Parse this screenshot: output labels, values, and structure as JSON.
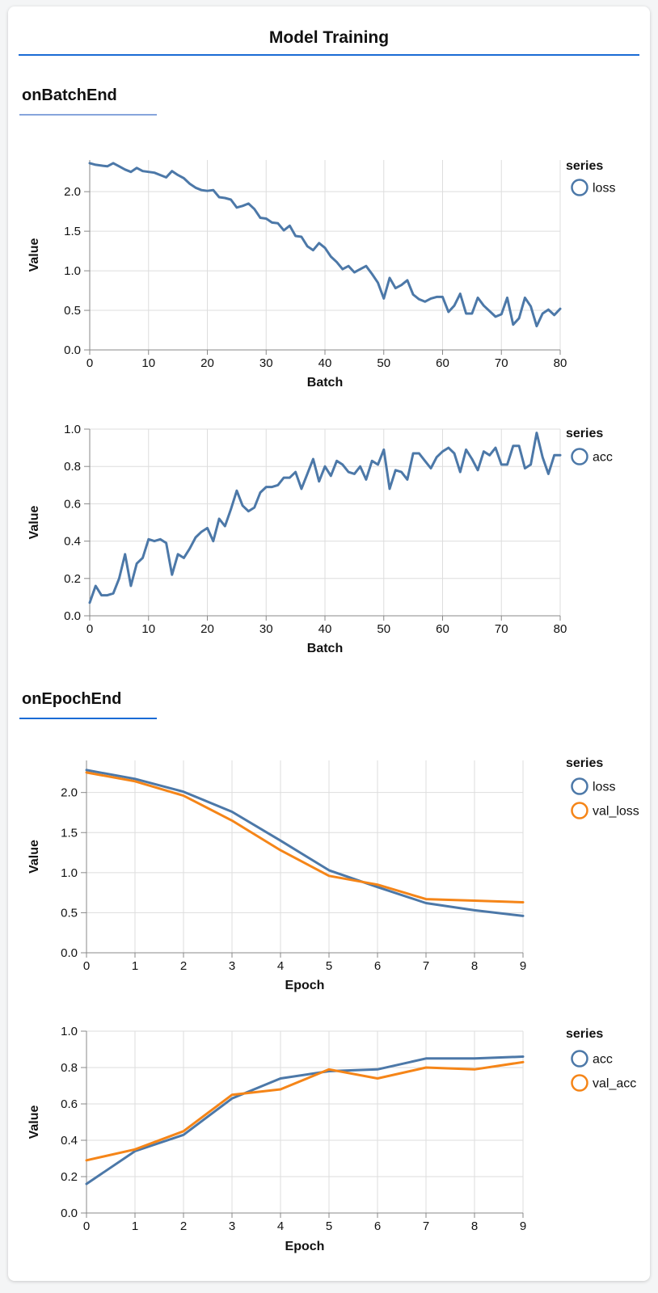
{
  "header": {
    "title": "Model Training",
    "underline_color": "#1a6bd5"
  },
  "sections": [
    {
      "heading": "onBatchEnd",
      "underline_color": "#87a5dc"
    },
    {
      "heading": "onEpochEnd",
      "underline_color": "#1a6bd5"
    }
  ],
  "colors": {
    "series_blue": "#4c78a8",
    "series_orange": "#f58518",
    "grid": "#dddddd",
    "axis": "#888888",
    "card_background": "#ffffff",
    "page_background": "#f4f5f6"
  },
  "chart_data": [
    {
      "id": "batch-loss",
      "type": "line",
      "section": "onBatchEnd",
      "xlabel": "Batch",
      "ylabel": "Value",
      "legend_title": "series",
      "legend_position": "top-right",
      "grid": true,
      "xlim": [
        0,
        80
      ],
      "xticks": [
        0,
        10,
        20,
        30,
        40,
        50,
        60,
        70,
        80
      ],
      "ylim": [
        0,
        2.4
      ],
      "yticks": [
        0.0,
        0.5,
        1.0,
        1.5,
        2.0
      ],
      "x_start": 0,
      "x_step": 1,
      "series": [
        {
          "name": "loss",
          "color": "#4c78a8",
          "values": [
            2.36,
            2.34,
            2.33,
            2.32,
            2.36,
            2.32,
            2.28,
            2.25,
            2.3,
            2.26,
            2.25,
            2.24,
            2.21,
            2.18,
            2.26,
            2.21,
            2.17,
            2.1,
            2.05,
            2.02,
            2.01,
            2.02,
            1.93,
            1.92,
            1.9,
            1.8,
            1.82,
            1.85,
            1.78,
            1.67,
            1.66,
            1.61,
            1.6,
            1.51,
            1.57,
            1.44,
            1.43,
            1.31,
            1.26,
            1.35,
            1.29,
            1.18,
            1.11,
            1.02,
            1.06,
            0.98,
            1.02,
            1.06,
            0.96,
            0.85,
            0.65,
            0.91,
            0.78,
            0.82,
            0.88,
            0.7,
            0.64,
            0.61,
            0.65,
            0.67,
            0.67,
            0.48,
            0.56,
            0.71,
            0.46,
            0.46,
            0.66,
            0.56,
            0.49,
            0.42,
            0.45,
            0.66,
            0.32,
            0.4,
            0.66,
            0.55,
            0.3,
            0.46,
            0.51,
            0.44,
            0.52
          ]
        }
      ]
    },
    {
      "id": "batch-acc",
      "type": "line",
      "section": "onBatchEnd",
      "xlabel": "Batch",
      "ylabel": "Value",
      "legend_title": "series",
      "legend_position": "top-right",
      "grid": true,
      "xlim": [
        0,
        80
      ],
      "xticks": [
        0,
        10,
        20,
        30,
        40,
        50,
        60,
        70,
        80
      ],
      "ylim": [
        0,
        1.0
      ],
      "yticks": [
        0.0,
        0.2,
        0.4,
        0.6,
        0.8,
        1.0
      ],
      "x_start": 0,
      "x_step": 1,
      "series": [
        {
          "name": "acc",
          "color": "#4c78a8",
          "values": [
            0.07,
            0.16,
            0.11,
            0.11,
            0.12,
            0.2,
            0.33,
            0.16,
            0.28,
            0.31,
            0.41,
            0.4,
            0.41,
            0.39,
            0.22,
            0.33,
            0.31,
            0.36,
            0.42,
            0.45,
            0.47,
            0.4,
            0.52,
            0.48,
            0.57,
            0.67,
            0.59,
            0.56,
            0.58,
            0.66,
            0.69,
            0.69,
            0.7,
            0.74,
            0.74,
            0.77,
            0.68,
            0.76,
            0.84,
            0.72,
            0.8,
            0.75,
            0.83,
            0.81,
            0.77,
            0.76,
            0.8,
            0.73,
            0.83,
            0.81,
            0.89,
            0.68,
            0.78,
            0.77,
            0.73,
            0.87,
            0.87,
            0.83,
            0.79,
            0.85,
            0.88,
            0.9,
            0.87,
            0.77,
            0.89,
            0.84,
            0.78,
            0.88,
            0.86,
            0.9,
            0.81,
            0.81,
            0.91,
            0.91,
            0.79,
            0.81,
            0.98,
            0.85,
            0.76,
            0.86,
            0.86
          ]
        }
      ]
    },
    {
      "id": "epoch-loss",
      "type": "line",
      "section": "onEpochEnd",
      "xlabel": "Epoch",
      "ylabel": "Value",
      "legend_title": "series",
      "legend_position": "top-right",
      "grid": true,
      "xlim": [
        0,
        9
      ],
      "xticks": [
        0,
        1,
        2,
        3,
        4,
        5,
        6,
        7,
        8,
        9
      ],
      "ylim": [
        0,
        2.4
      ],
      "yticks": [
        0.0,
        0.5,
        1.0,
        1.5,
        2.0
      ],
      "x_start": 0,
      "x_step": 1,
      "series": [
        {
          "name": "loss",
          "color": "#4c78a8",
          "values": [
            2.28,
            2.17,
            2.01,
            1.76,
            1.4,
            1.03,
            0.82,
            0.62,
            0.53,
            0.46
          ]
        },
        {
          "name": "val_loss",
          "color": "#f58518",
          "values": [
            2.25,
            2.14,
            1.96,
            1.65,
            1.28,
            0.96,
            0.85,
            0.67,
            0.65,
            0.63
          ]
        }
      ]
    },
    {
      "id": "epoch-acc",
      "type": "line",
      "section": "onEpochEnd",
      "xlabel": "Epoch",
      "ylabel": "Value",
      "legend_title": "series",
      "legend_position": "top-right",
      "grid": true,
      "xlim": [
        0,
        9
      ],
      "xticks": [
        0,
        1,
        2,
        3,
        4,
        5,
        6,
        7,
        8,
        9
      ],
      "ylim": [
        0,
        1.0
      ],
      "yticks": [
        0.0,
        0.2,
        0.4,
        0.6,
        0.8,
        1.0
      ],
      "x_start": 0,
      "x_step": 1,
      "series": [
        {
          "name": "acc",
          "color": "#4c78a8",
          "values": [
            0.16,
            0.34,
            0.43,
            0.63,
            0.74,
            0.78,
            0.79,
            0.85,
            0.85,
            0.86
          ]
        },
        {
          "name": "val_acc",
          "color": "#f58518",
          "values": [
            0.29,
            0.35,
            0.45,
            0.65,
            0.68,
            0.79,
            0.74,
            0.8,
            0.79,
            0.83
          ]
        }
      ]
    }
  ]
}
